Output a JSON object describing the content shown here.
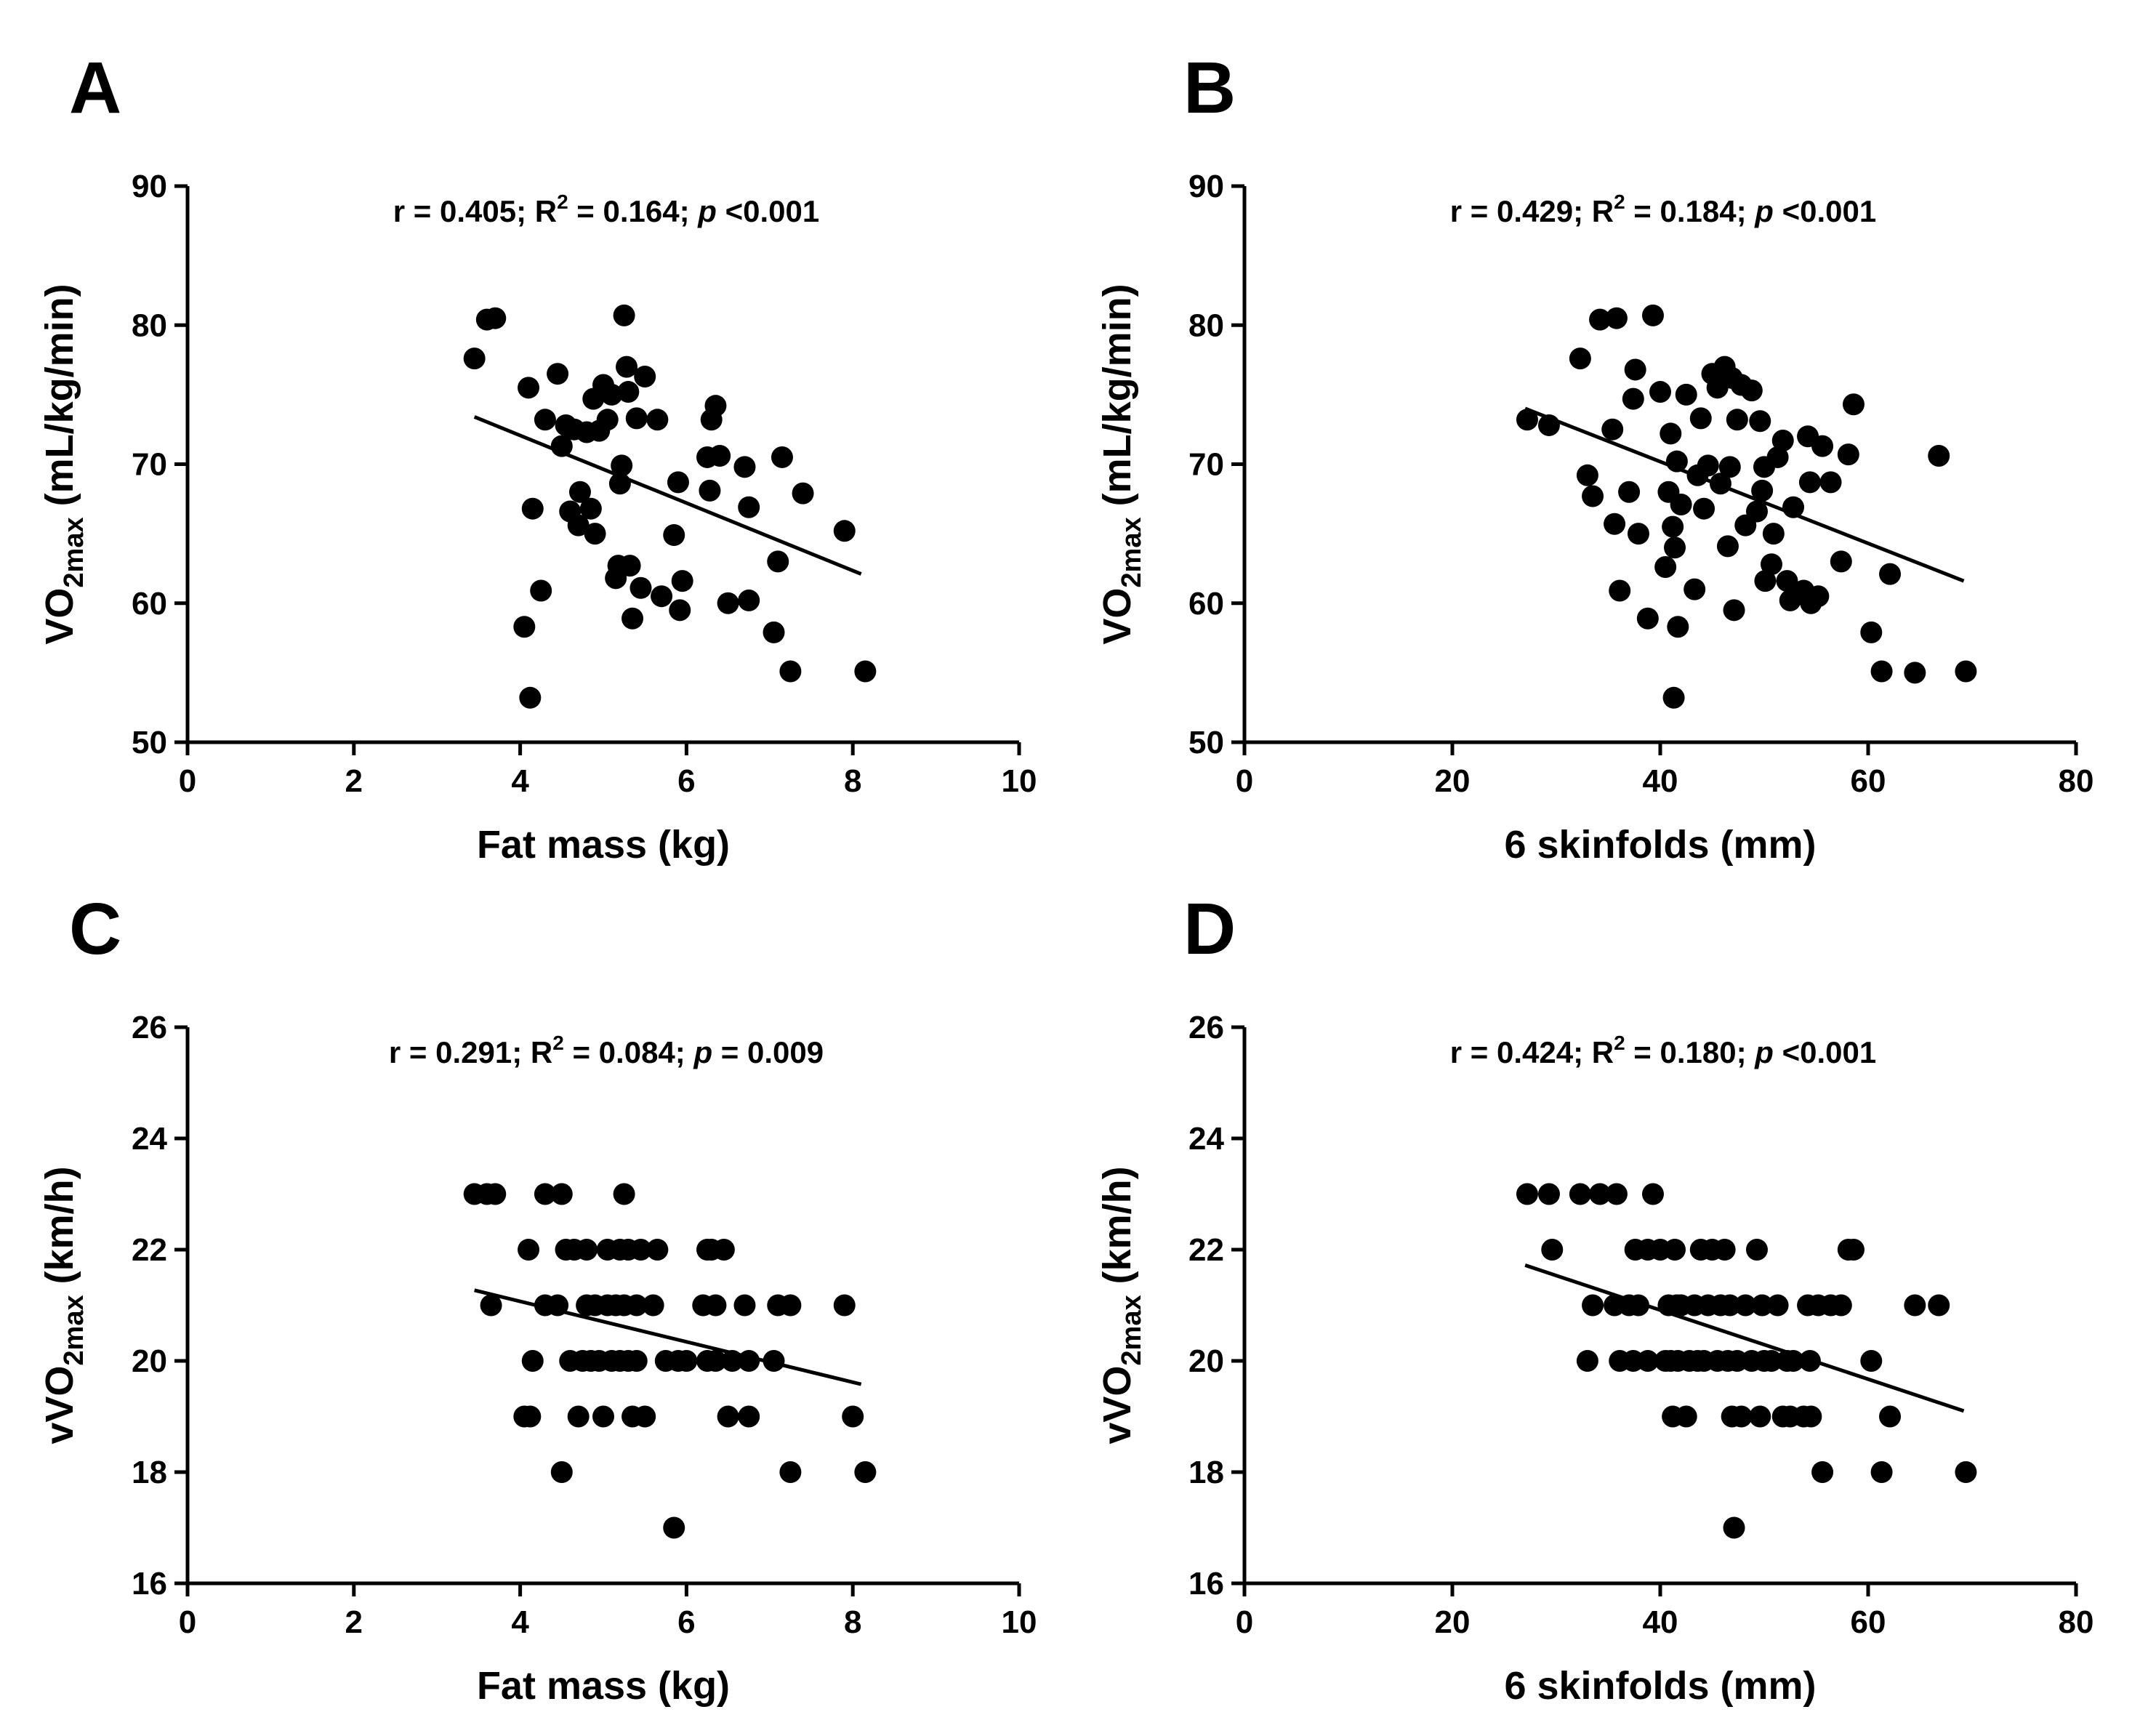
{
  "chart_data": [
    {
      "panel": "A",
      "type": "scatter",
      "title": "",
      "stats": {
        "r": "r = 0.405;",
        "r2_prefix": " R",
        "r2_exp": "2",
        "r2_value": " = 0.164;",
        "p_symbol": "p",
        "p_value": "<0.001"
      },
      "xlabel": "Fat mass (kg)",
      "ylabel": {
        "pre": "VO",
        "sub": "2max",
        "post": " (mL/kg/min)"
      },
      "xlim": [
        0,
        10
      ],
      "ylim": [
        50,
        90
      ],
      "xticks": [
        0,
        2,
        4,
        6,
        8,
        10
      ],
      "yticks": [
        50,
        60,
        70,
        80,
        90
      ],
      "fit": {
        "x0": 3.45,
        "y0": 73.4,
        "x1": 8.1,
        "y1": 62.1
      },
      "points": [
        [
          3.45,
          77.6
        ],
        [
          3.6,
          80.4
        ],
        [
          3.7,
          80.5
        ],
        [
          4.05,
          58.3
        ],
        [
          4.1,
          75.5
        ],
        [
          4.12,
          53.2
        ],
        [
          4.15,
          66.8
        ],
        [
          4.25,
          60.9
        ],
        [
          4.3,
          73.2
        ],
        [
          4.45,
          76.5
        ],
        [
          4.5,
          71.3
        ],
        [
          4.55,
          72.8
        ],
        [
          4.6,
          66.6
        ],
        [
          4.65,
          72.5
        ],
        [
          4.7,
          65.6
        ],
        [
          4.72,
          68.0
        ],
        [
          4.8,
          72.3
        ],
        [
          4.85,
          66.8
        ],
        [
          4.88,
          74.7
        ],
        [
          4.9,
          65.0
        ],
        [
          4.95,
          72.4
        ],
        [
          5.0,
          75.7
        ],
        [
          5.05,
          73.2
        ],
        [
          5.1,
          75.0
        ],
        [
          5.15,
          61.8
        ],
        [
          5.18,
          62.7
        ],
        [
          5.2,
          68.6
        ],
        [
          5.22,
          69.9
        ],
        [
          5.25,
          80.7
        ],
        [
          5.28,
          77.0
        ],
        [
          5.3,
          75.2
        ],
        [
          5.32,
          62.7
        ],
        [
          5.35,
          58.9
        ],
        [
          5.4,
          73.3
        ],
        [
          5.45,
          61.1
        ],
        [
          5.5,
          76.3
        ],
        [
          5.65,
          73.2
        ],
        [
          5.7,
          60.5
        ],
        [
          5.85,
          64.9
        ],
        [
          5.9,
          68.7
        ],
        [
          5.92,
          59.5
        ],
        [
          5.95,
          61.6
        ],
        [
          6.25,
          70.5
        ],
        [
          6.28,
          68.1
        ],
        [
          6.3,
          73.2
        ],
        [
          6.35,
          74.2
        ],
        [
          6.4,
          70.6
        ],
        [
          6.5,
          60.0
        ],
        [
          6.7,
          69.8
        ],
        [
          6.75,
          66.9
        ],
        [
          6.75,
          60.2
        ],
        [
          7.05,
          57.9
        ],
        [
          7.1,
          63.0
        ],
        [
          7.15,
          70.5
        ],
        [
          7.25,
          55.1
        ],
        [
          7.4,
          67.9
        ],
        [
          7.9,
          65.2
        ],
        [
          8.15,
          55.1
        ]
      ]
    },
    {
      "panel": "B",
      "type": "scatter",
      "title": "",
      "stats": {
        "r": "r = 0.429;",
        "r2_prefix": " R",
        "r2_exp": "2",
        "r2_value": " = 0.184;",
        "p_symbol": "p",
        "p_value": "<0.001"
      },
      "xlabel": "6 skinfolds (mm)",
      "ylabel": {
        "pre": "VO",
        "sub": "2max",
        "post": " (mL/kg/min)"
      },
      "xlim": [
        0,
        80
      ],
      "ylim": [
        50,
        90
      ],
      "xticks": [
        0,
        20,
        40,
        60,
        80
      ],
      "yticks": [
        50,
        60,
        70,
        80,
        90
      ],
      "fit": {
        "x0": 27,
        "y0": 74.0,
        "x1": 69.2,
        "y1": 61.6
      },
      "points": [
        [
          27.2,
          73.2
        ],
        [
          29.3,
          72.8
        ],
        [
          32.3,
          77.6
        ],
        [
          33.0,
          69.2
        ],
        [
          33.5,
          67.7
        ],
        [
          34.2,
          80.4
        ],
        [
          35.4,
          72.5
        ],
        [
          35.6,
          65.7
        ],
        [
          35.8,
          80.5
        ],
        [
          36.1,
          60.9
        ],
        [
          37.0,
          68.0
        ],
        [
          37.4,
          74.7
        ],
        [
          37.6,
          76.8
        ],
        [
          37.9,
          65.0
        ],
        [
          38.8,
          58.9
        ],
        [
          39.3,
          80.7
        ],
        [
          40.0,
          75.2
        ],
        [
          40.5,
          62.6
        ],
        [
          40.8,
          68.0
        ],
        [
          41.0,
          72.2
        ],
        [
          41.2,
          65.5
        ],
        [
          41.4,
          64.0
        ],
        [
          41.6,
          70.2
        ],
        [
          41.7,
          58.3
        ],
        [
          41.3,
          53.2
        ],
        [
          42.0,
          67.1
        ],
        [
          42.5,
          75.0
        ],
        [
          43.3,
          61.0
        ],
        [
          43.6,
          69.2
        ],
        [
          43.9,
          73.3
        ],
        [
          44.2,
          66.8
        ],
        [
          44.6,
          69.9
        ],
        [
          45.0,
          76.5
        ],
        [
          45.5,
          75.5
        ],
        [
          45.8,
          68.6
        ],
        [
          46.2,
          77.0
        ],
        [
          46.5,
          64.1
        ],
        [
          46.7,
          69.8
        ],
        [
          46.9,
          76.2
        ],
        [
          47.1,
          59.5
        ],
        [
          47.4,
          73.2
        ],
        [
          47.8,
          75.7
        ],
        [
          48.2,
          65.6
        ],
        [
          48.8,
          75.3
        ],
        [
          49.3,
          66.6
        ],
        [
          49.6,
          73.1
        ],
        [
          49.8,
          68.1
        ],
        [
          50.0,
          69.8
        ],
        [
          50.1,
          61.6
        ],
        [
          50.7,
          62.8
        ],
        [
          50.9,
          65.0
        ],
        [
          51.3,
          70.5
        ],
        [
          51.8,
          71.7
        ],
        [
          52.2,
          61.6
        ],
        [
          52.5,
          60.2
        ],
        [
          52.8,
          66.9
        ],
        [
          53.8,
          60.9
        ],
        [
          54.2,
          72.0
        ],
        [
          54.4,
          68.7
        ],
        [
          54.5,
          60.0
        ],
        [
          55.2,
          60.5
        ],
        [
          55.6,
          71.3
        ],
        [
          56.4,
          68.7
        ],
        [
          57.4,
          63.0
        ],
        [
          58.1,
          70.7
        ],
        [
          58.6,
          74.3
        ],
        [
          60.3,
          57.9
        ],
        [
          61.3,
          55.1
        ],
        [
          62.1,
          62.1
        ],
        [
          64.5,
          55.0
        ],
        [
          66.8,
          70.6
        ],
        [
          69.4,
          55.1
        ]
      ]
    },
    {
      "panel": "C",
      "type": "scatter",
      "title": "",
      "stats": {
        "r": "r = 0.291;",
        "r2_prefix": " R",
        "r2_exp": "2",
        "r2_value": " = 0.084;",
        "p_symbol": "p",
        "p_value": "= 0.009"
      },
      "xlabel": "Fat mass (kg)",
      "ylabel": {
        "pre": "vVO",
        "sub": "2max",
        "post": " (km/h)"
      },
      "xlim": [
        0,
        10
      ],
      "ylim": [
        16,
        26
      ],
      "xticks": [
        0,
        2,
        4,
        6,
        8,
        10
      ],
      "yticks": [
        16,
        18,
        20,
        22,
        24,
        26
      ],
      "fit": {
        "x0": 3.45,
        "y0": 21.27,
        "x1": 8.1,
        "y1": 19.58
      },
      "points": [
        [
          3.45,
          23
        ],
        [
          3.6,
          23
        ],
        [
          3.7,
          23
        ],
        [
          3.65,
          21
        ],
        [
          4.05,
          19
        ],
        [
          4.1,
          22
        ],
        [
          4.12,
          19
        ],
        [
          4.15,
          20
        ],
        [
          4.3,
          23
        ],
        [
          4.3,
          21
        ],
        [
          4.45,
          21
        ],
        [
          4.5,
          23
        ],
        [
          4.5,
          18
        ],
        [
          4.55,
          22
        ],
        [
          4.6,
          20
        ],
        [
          4.65,
          22
        ],
        [
          4.7,
          19
        ],
        [
          4.75,
          20
        ],
        [
          4.8,
          22
        ],
        [
          4.8,
          21
        ],
        [
          4.85,
          20
        ],
        [
          4.9,
          21
        ],
        [
          4.95,
          20
        ],
        [
          5.0,
          19
        ],
        [
          5.05,
          21
        ],
        [
          5.05,
          22
        ],
        [
          5.1,
          20
        ],
        [
          5.15,
          21
        ],
        [
          5.2,
          22
        ],
        [
          5.2,
          20
        ],
        [
          5.25,
          21
        ],
        [
          5.25,
          23
        ],
        [
          5.3,
          22
        ],
        [
          5.3,
          20
        ],
        [
          5.35,
          19
        ],
        [
          5.4,
          21
        ],
        [
          5.4,
          20
        ],
        [
          5.45,
          22
        ],
        [
          5.5,
          19
        ],
        [
          5.6,
          21
        ],
        [
          5.65,
          22
        ],
        [
          5.75,
          20
        ],
        [
          5.85,
          17
        ],
        [
          5.9,
          20
        ],
        [
          6.0,
          20
        ],
        [
          6.2,
          21
        ],
        [
          6.25,
          20
        ],
        [
          6.25,
          22
        ],
        [
          6.3,
          22
        ],
        [
          6.35,
          20
        ],
        [
          6.35,
          21
        ],
        [
          6.45,
          22
        ],
        [
          6.5,
          19
        ],
        [
          6.55,
          20
        ],
        [
          6.7,
          21
        ],
        [
          6.75,
          20
        ],
        [
          6.75,
          19
        ],
        [
          7.05,
          20
        ],
        [
          7.1,
          21
        ],
        [
          7.25,
          18
        ],
        [
          7.25,
          21
        ],
        [
          7.9,
          21
        ],
        [
          8.0,
          19
        ],
        [
          8.15,
          18
        ]
      ]
    },
    {
      "panel": "D",
      "type": "scatter",
      "title": "",
      "stats": {
        "r": "r = 0.424;",
        "r2_prefix": " R",
        "r2_exp": "2",
        "r2_value": " = 0.180;",
        "p_symbol": "p",
        "p_value": "<0.001"
      },
      "xlabel": "6 skinfolds (mm)",
      "ylabel": {
        "pre": "vVO",
        "sub": "2max",
        "post": " (km/h)"
      },
      "xlim": [
        0,
        80
      ],
      "ylim": [
        16,
        26
      ],
      "xticks": [
        0,
        20,
        40,
        60,
        80
      ],
      "yticks": [
        16,
        18,
        20,
        22,
        24,
        26
      ],
      "fit": {
        "x0": 27,
        "y0": 21.72,
        "x1": 69.2,
        "y1": 19.1
      },
      "points": [
        [
          27.2,
          23
        ],
        [
          29.3,
          23
        ],
        [
          29.6,
          22
        ],
        [
          32.3,
          23
        ],
        [
          33.0,
          20
        ],
        [
          33.5,
          21
        ],
        [
          34.2,
          23
        ],
        [
          35.6,
          21
        ],
        [
          35.8,
          23
        ],
        [
          36.1,
          20
        ],
        [
          37.0,
          21
        ],
        [
          37.4,
          20
        ],
        [
          37.6,
          22
        ],
        [
          37.9,
          21
        ],
        [
          38.8,
          22
        ],
        [
          38.8,
          20
        ],
        [
          39.3,
          23
        ],
        [
          40.0,
          22
        ],
        [
          40.5,
          20
        ],
        [
          40.8,
          21
        ],
        [
          41.0,
          20
        ],
        [
          41.2,
          19
        ],
        [
          41.4,
          22
        ],
        [
          41.6,
          21
        ],
        [
          41.7,
          20
        ],
        [
          42.0,
          21
        ],
        [
          42.5,
          19
        ],
        [
          42.8,
          20
        ],
        [
          43.3,
          21
        ],
        [
          43.6,
          20
        ],
        [
          43.9,
          22
        ],
        [
          44.2,
          20
        ],
        [
          44.6,
          21
        ],
        [
          45.0,
          22
        ],
        [
          45.5,
          20
        ],
        [
          45.8,
          21
        ],
        [
          46.2,
          22
        ],
        [
          46.5,
          20
        ],
        [
          46.7,
          21
        ],
        [
          46.9,
          19
        ],
        [
          47.1,
          17
        ],
        [
          47.4,
          20
        ],
        [
          47.8,
          19
        ],
        [
          48.2,
          21
        ],
        [
          48.8,
          20
        ],
        [
          49.3,
          22
        ],
        [
          49.6,
          19
        ],
        [
          49.8,
          21
        ],
        [
          50.0,
          20
        ],
        [
          50.7,
          20
        ],
        [
          51.3,
          21
        ],
        [
          51.8,
          19
        ],
        [
          52.2,
          20
        ],
        [
          52.5,
          19
        ],
        [
          52.8,
          20
        ],
        [
          53.8,
          19
        ],
        [
          54.2,
          21
        ],
        [
          54.4,
          20
        ],
        [
          54.5,
          19
        ],
        [
          55.2,
          21
        ],
        [
          55.6,
          18
        ],
        [
          56.4,
          21
        ],
        [
          57.4,
          21
        ],
        [
          58.1,
          22
        ],
        [
          58.6,
          22
        ],
        [
          60.3,
          20
        ],
        [
          61.3,
          18
        ],
        [
          62.1,
          19
        ],
        [
          64.5,
          21
        ],
        [
          66.8,
          21
        ],
        [
          69.4,
          18
        ]
      ]
    }
  ],
  "panels_meta": {
    "A": "A",
    "B": "B",
    "C": "C",
    "D": "D"
  }
}
